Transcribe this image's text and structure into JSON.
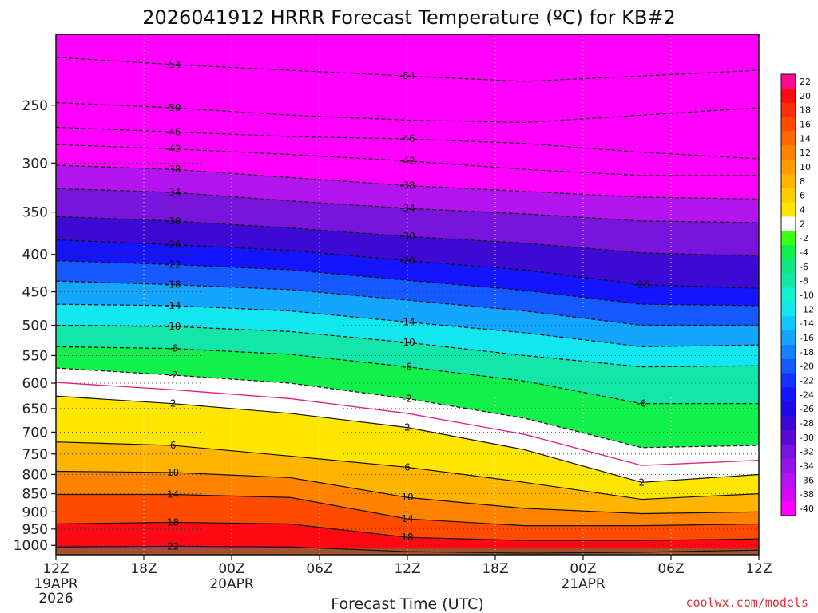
{
  "chart_data": {
    "type": "heatmap",
    "title": "2026041912 HRRR Forecast Temperature (ºC) for KB#2",
    "xlabel": "Forecast Time (UTC)",
    "ylabel": "",
    "credit": "coolwx.com/models",
    "x_ticks": [
      "12Z",
      "18Z",
      "00Z",
      "06Z",
      "12Z",
      "18Z",
      "00Z",
      "06Z",
      "12Z"
    ],
    "x_dates": [
      {
        "hour_index": 0,
        "label": "19APR"
      },
      {
        "hour_index": 12,
        "label": "20APR"
      },
      {
        "hour_index": 36,
        "label": "21APR"
      }
    ],
    "x_year": "2026",
    "x_hours": [
      0,
      48
    ],
    "y_ticks": [
      250,
      300,
      350,
      400,
      450,
      500,
      550,
      600,
      650,
      700,
      750,
      800,
      850,
      900,
      950,
      1000
    ],
    "y_top_hpa": 200,
    "y_bottom_hpa": 1030,
    "y_scale": "log-pressure",
    "grid": true,
    "colorbar": {
      "labels": [
        "22",
        "20",
        "18",
        "16",
        "14",
        "12",
        "10",
        "8",
        "6",
        "4",
        "2",
        "-2",
        "-4",
        "-6",
        "-8",
        "-10",
        "-12",
        "-14",
        "-16",
        "-18",
        "-20",
        "-22",
        "-24",
        "-26",
        "-28",
        "-30",
        "-32",
        "-34",
        "-36",
        "-38",
        "-40"
      ],
      "colors": [
        "#ff0a8c",
        "#ff0a14",
        "#ff2d0a",
        "#ff4b00",
        "#ff6900",
        "#ff8200",
        "#ff9b00",
        "#ffb400",
        "#ffcd00",
        "#ffe600",
        "#ffffff",
        "#3cff14",
        "#14f04b",
        "#14e682",
        "#14e6aa",
        "#14f0d2",
        "#14e6f0",
        "#14c8ff",
        "#14a5ff",
        "#1482ff",
        "#145aff",
        "#1432ff",
        "#1414ff",
        "#1e0ae6",
        "#3c0ad2",
        "#5a0ad2",
        "#7814dc",
        "#9614e6",
        "#b414f0",
        "#d20af5",
        "#ff00ff"
      ],
      "ground": "#a0522d"
    },
    "isotherms": [
      -54,
      -50,
      -46,
      -42,
      -38,
      -34,
      -30,
      -26,
      -22,
      -18,
      -14,
      -10,
      -6,
      -2,
      2,
      6,
      10,
      14,
      18,
      22
    ],
    "isotherm_depth_hpa": [
      {
        "label": "-54",
        "values": [
          215,
          220,
          224,
          228,
          232,
          228,
          224
        ]
      },
      {
        "label": "-50",
        "values": [
          248,
          252,
          258,
          262,
          264,
          258,
          252
        ]
      },
      {
        "label": "-46",
        "values": [
          268,
          272,
          276,
          278,
          282,
          290,
          296
        ]
      },
      {
        "label": "-42",
        "values": [
          283,
          287,
          292,
          298,
          306,
          312,
          312
        ]
      },
      {
        "label": "-38",
        "values": [
          302,
          306,
          314,
          322,
          328,
          334,
          336
        ]
      },
      {
        "label": "-34",
        "values": [
          325,
          329,
          338,
          346,
          352,
          360,
          362
        ]
      },
      {
        "label": "-30",
        "values": [
          355,
          360,
          368,
          378,
          386,
          398,
          402
        ]
      },
      {
        "label": "-26",
        "values": [
          382,
          388,
          395,
          408,
          420,
          440,
          445
        ]
      },
      {
        "label": "-22",
        "values": [
          408,
          413,
          420,
          434,
          448,
          468,
          470
        ]
      },
      {
        "label": "-18",
        "values": [
          435,
          440,
          447,
          462,
          478,
          500,
          500
        ]
      },
      {
        "label": "-14",
        "values": [
          468,
          470,
          478,
          495,
          512,
          535,
          532
        ]
      },
      {
        "label": "-10",
        "values": [
          500,
          502,
          510,
          528,
          550,
          570,
          568
        ]
      },
      {
        "label": "-6",
        "values": [
          535,
          538,
          548,
          570,
          596,
          640,
          640
        ]
      },
      {
        "label": "-2",
        "values": [
          572,
          585,
          600,
          630,
          670,
          735,
          730
        ]
      },
      {
        "label": "2",
        "values": [
          625,
          640,
          660,
          690,
          740,
          820,
          800
        ]
      },
      {
        "label": "6",
        "values": [
          722,
          730,
          755,
          782,
          820,
          865,
          850
        ]
      },
      {
        "label": "10",
        "values": [
          792,
          795,
          808,
          860,
          890,
          905,
          900
        ]
      },
      {
        "label": "14",
        "values": [
          852,
          852,
          860,
          920,
          940,
          940,
          935
        ]
      },
      {
        "label": "18",
        "values": [
          935,
          930,
          935,
          975,
          985,
          985,
          980
        ]
      },
      {
        "label": "22",
        "values": [
          1005,
          1003,
          1005,
          1020,
          1025,
          1022,
          1015
        ]
      }
    ],
    "isotherm_time_hours": [
      0,
      8,
      16,
      24,
      32,
      40,
      48
    ],
    "contour_labels": [
      "-54",
      "-54",
      "-50",
      "-46",
      "-46",
      "-42",
      "-42",
      "-38",
      "-38",
      "-34",
      "-34",
      "-30",
      "-30",
      "-26",
      "-26",
      "-26",
      "-22",
      "-18",
      "-14",
      "-14",
      "-10",
      "-10",
      "-6",
      "-6",
      "-6",
      "-2",
      "-2",
      "2",
      "2",
      "2",
      "6",
      "6",
      "10",
      "10",
      "14",
      "14",
      "18",
      "18",
      "22"
    ]
  }
}
